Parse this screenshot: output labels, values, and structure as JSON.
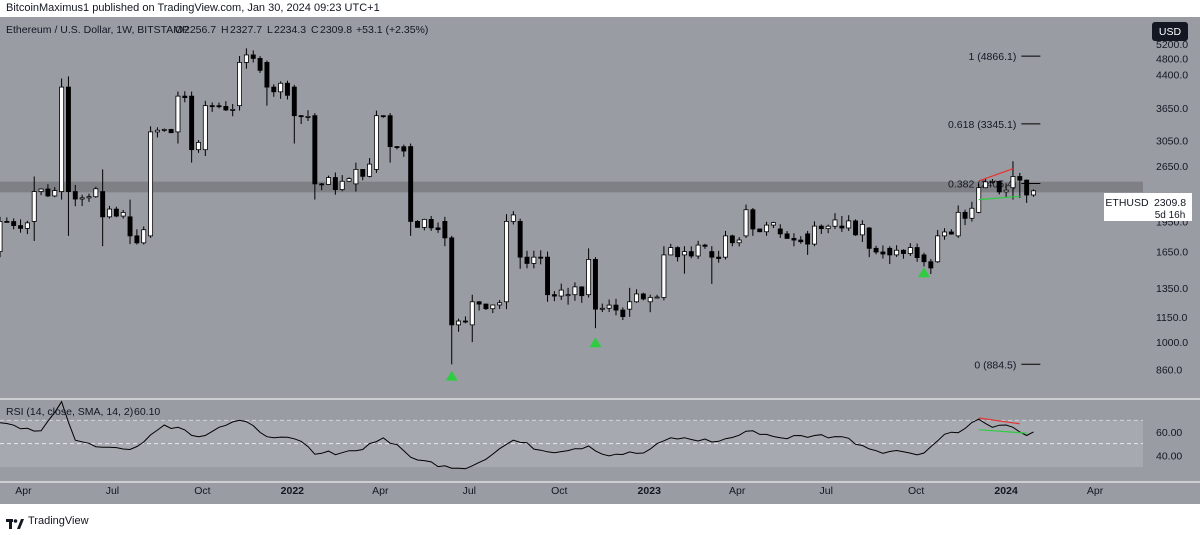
{
  "publisher": "BitcoinMaximus1 published on TradingView.com, Jan 30, 2024 09:23 UTC+1",
  "branding": "TradingView",
  "colors": {
    "background": "#9a9ca4",
    "panel_background": "#ffffff",
    "up_candle": "#ffffff",
    "down_candle": "#000000",
    "resistance_band": "#7e8086",
    "rsi_band": "#a7a9b0",
    "marker": "#2ecc40",
    "divergence_red": "#e5322e",
    "divergence_green": "#2ecc40"
  },
  "chart_data": {
    "type": "candlestick",
    "title": "Ethereum / U.S. Dollar, 1W, BITSTAMP",
    "ohlc_label": {
      "o_label": "O",
      "o": "2256.7",
      "h_label": "H",
      "h": "2327.7",
      "l_label": "L",
      "l": "2234.3",
      "c_label": "C",
      "c": "2309.8",
      "change": "+53.1 (+2.35%)"
    },
    "currency": "USD",
    "scale": "log",
    "ylim": [
      780,
      5500
    ],
    "y_ticks": [
      "5200.0",
      "4800.0",
      "4400.0",
      "3650.0",
      "3050.0",
      "2650.0",
      "1950.0",
      "1650.0",
      "1350.0",
      "1150.0",
      "1000.0",
      "860.0"
    ],
    "x_ticks": [
      "Apr",
      "Jul",
      "Oct",
      "2022",
      "Apr",
      "Jul",
      "Oct",
      "2023",
      "Apr",
      "Jul",
      "Oct",
      "2024",
      "Apr"
    ],
    "x_tick_dates": [
      "2021-04-01",
      "2021-07-01",
      "2021-10-01",
      "2022-01-01",
      "2022-04-01",
      "2022-07-01",
      "2022-10-01",
      "2023-01-01",
      "2023-04-01",
      "2023-07-01",
      "2023-10-01",
      "2024-01-01",
      "2024-04-01"
    ],
    "xlim": [
      "2021-03-08",
      "2024-05-20"
    ],
    "price_label": {
      "symbol": "ETHUSD",
      "price": "2309.8",
      "countdown": "5d 16h"
    },
    "resistance_zone": [
      2290,
      2430
    ],
    "fib_levels": [
      {
        "label": "1 (4866.1)",
        "value": 4866.1
      },
      {
        "label": "0.618 (3345.1)",
        "value": 3345.1
      },
      {
        "label": "0.382 (2405.4)",
        "value": 2405.4
      },
      {
        "label": "0 (884.5)",
        "value": 884.5
      }
    ],
    "fib_x_range": [
      "2023-11-06",
      "2024-02-05"
    ],
    "markers": [
      {
        "date": "2022-06-13",
        "price": 835
      },
      {
        "date": "2022-11-07",
        "price": 1005
      },
      {
        "date": "2023-10-09",
        "price": 1480
      }
    ],
    "price_trendlines": [
      {
        "color": "red",
        "from": [
          "2023-12-04",
          2440
        ],
        "to": [
          "2024-01-08",
          2610
        ]
      },
      {
        "color": "green",
        "from": [
          "2023-12-04",
          2200
        ],
        "to": [
          "2024-01-15",
          2240
        ]
      }
    ],
    "candle_points": [
      {
        "date": "2021-03-08",
        "open": 1650,
        "high": 2000,
        "low": 1600,
        "close": 1950
      },
      {
        "date": "2021-04-12",
        "open": 1950,
        "high": 2500,
        "low": 1750,
        "close": 2300
      },
      {
        "date": "2021-05-10",
        "open": 2300,
        "high": 4300,
        "low": 2200,
        "close": 4100
      },
      {
        "date": "2021-05-17",
        "open": 4100,
        "high": 4350,
        "low": 1800,
        "close": 2300
      },
      {
        "date": "2021-06-21",
        "open": 2300,
        "high": 2600,
        "low": 1700,
        "close": 2000
      },
      {
        "date": "2021-07-19",
        "open": 2000,
        "high": 2200,
        "low": 1720,
        "close": 1800
      },
      {
        "date": "2021-08-09",
        "open": 1800,
        "high": 3300,
        "low": 1780,
        "close": 3200
      },
      {
        "date": "2021-09-06",
        "open": 3200,
        "high": 4000,
        "low": 3000,
        "close": 3900
      },
      {
        "date": "2021-09-20",
        "open": 3900,
        "high": 4000,
        "low": 2700,
        "close": 2900
      },
      {
        "date": "2021-10-04",
        "open": 2900,
        "high": 3800,
        "low": 2800,
        "close": 3700
      },
      {
        "date": "2021-11-08",
        "open": 3700,
        "high": 4870,
        "low": 3600,
        "close": 4700
      },
      {
        "date": "2021-12-06",
        "open": 4700,
        "high": 4750,
        "low": 3700,
        "close": 4100
      },
      {
        "date": "2022-01-03",
        "open": 4100,
        "high": 4150,
        "low": 3000,
        "close": 3500
      },
      {
        "date": "2022-01-24",
        "open": 3500,
        "high": 3550,
        "low": 2200,
        "close": 2400
      },
      {
        "date": "2022-03-07",
        "open": 2400,
        "high": 2700,
        "low": 2300,
        "close": 2600
      },
      {
        "date": "2022-03-28",
        "open": 2600,
        "high": 3600,
        "low": 2550,
        "close": 3500
      },
      {
        "date": "2022-04-11",
        "open": 3500,
        "high": 3550,
        "low": 2700,
        "close": 2950
      },
      {
        "date": "2022-05-02",
        "open": 2950,
        "high": 3000,
        "low": 1800,
        "close": 1950
      },
      {
        "date": "2022-06-06",
        "open": 1950,
        "high": 2000,
        "low": 1700,
        "close": 1780
      },
      {
        "date": "2022-06-13",
        "open": 1780,
        "high": 1800,
        "low": 884,
        "close": 1100
      },
      {
        "date": "2022-07-04",
        "open": 1100,
        "high": 1300,
        "low": 1000,
        "close": 1250
      },
      {
        "date": "2022-08-08",
        "open": 1250,
        "high": 2030,
        "low": 1200,
        "close": 1950
      },
      {
        "date": "2022-08-22",
        "open": 1950,
        "high": 1980,
        "low": 1500,
        "close": 1600
      },
      {
        "date": "2022-09-19",
        "open": 1600,
        "high": 1650,
        "low": 1250,
        "close": 1300
      },
      {
        "date": "2022-10-10",
        "open": 1300,
        "high": 1350,
        "low": 1230,
        "close": 1300
      },
      {
        "date": "2022-10-31",
        "open": 1300,
        "high": 1680,
        "low": 1280,
        "close": 1580
      },
      {
        "date": "2022-11-07",
        "open": 1580,
        "high": 1600,
        "low": 1080,
        "close": 1200
      },
      {
        "date": "2022-12-12",
        "open": 1200,
        "high": 1350,
        "low": 1150,
        "close": 1250
      },
      {
        "date": "2023-01-02",
        "open": 1250,
        "high": 1300,
        "low": 1180,
        "close": 1280
      },
      {
        "date": "2023-01-16",
        "open": 1280,
        "high": 1700,
        "low": 1260,
        "close": 1620
      },
      {
        "date": "2023-02-06",
        "open": 1620,
        "high": 1700,
        "low": 1460,
        "close": 1650
      },
      {
        "date": "2023-03-06",
        "open": 1650,
        "high": 1700,
        "low": 1380,
        "close": 1600
      },
      {
        "date": "2023-03-20",
        "open": 1600,
        "high": 1850,
        "low": 1580,
        "close": 1800
      },
      {
        "date": "2023-04-10",
        "open": 1800,
        "high": 2140,
        "low": 1780,
        "close": 2080
      },
      {
        "date": "2023-04-17",
        "open": 2080,
        "high": 2100,
        "low": 1800,
        "close": 1870
      },
      {
        "date": "2023-05-15",
        "open": 1870,
        "high": 1920,
        "low": 1780,
        "close": 1820
      },
      {
        "date": "2023-06-12",
        "open": 1820,
        "high": 1850,
        "low": 1620,
        "close": 1720
      },
      {
        "date": "2023-06-19",
        "open": 1720,
        "high": 1950,
        "low": 1700,
        "close": 1900
      },
      {
        "date": "2023-07-17",
        "open": 1900,
        "high": 2010,
        "low": 1840,
        "close": 1880
      },
      {
        "date": "2023-08-14",
        "open": 1880,
        "high": 1890,
        "low": 1600,
        "close": 1680
      },
      {
        "date": "2023-09-04",
        "open": 1680,
        "high": 1700,
        "low": 1540,
        "close": 1620
      },
      {
        "date": "2023-10-09",
        "open": 1620,
        "high": 1640,
        "low": 1520,
        "close": 1560
      },
      {
        "date": "2023-10-23",
        "open": 1560,
        "high": 1860,
        "low": 1550,
        "close": 1800
      },
      {
        "date": "2023-11-13",
        "open": 1800,
        "high": 2130,
        "low": 1780,
        "close": 2050
      },
      {
        "date": "2023-12-04",
        "open": 2050,
        "high": 2400,
        "low": 2040,
        "close": 2350
      },
      {
        "date": "2024-01-08",
        "open": 2350,
        "high": 2720,
        "low": 2200,
        "close": 2500
      },
      {
        "date": "2024-01-15",
        "open": 2500,
        "high": 2550,
        "low": 2220,
        "close": 2450
      },
      {
        "date": "2024-01-22",
        "open": 2450,
        "high": 2460,
        "low": 2160,
        "close": 2256.7
      },
      {
        "date": "2024-01-29",
        "open": 2256.7,
        "high": 2327.7,
        "low": 2234.3,
        "close": 2309.8
      }
    ],
    "rsi": {
      "label": "RSI (14, close, SMA, 14, 2)",
      "value": "60.10",
      "y_ticks": [
        "60.00",
        "40.00"
      ],
      "ylim": [
        30,
        84
      ],
      "overbought": 70,
      "middle": 50,
      "oversold": 30,
      "points": [
        {
          "date": "2021-03-08",
          "value": 68
        },
        {
          "date": "2021-04-19",
          "value": 61
        },
        {
          "date": "2021-05-10",
          "value": 86
        },
        {
          "date": "2021-05-24",
          "value": 53
        },
        {
          "date": "2021-06-21",
          "value": 47
        },
        {
          "date": "2021-07-19",
          "value": 45
        },
        {
          "date": "2021-08-23",
          "value": 66
        },
        {
          "date": "2021-09-06",
          "value": 64
        },
        {
          "date": "2021-09-27",
          "value": 56
        },
        {
          "date": "2021-10-18",
          "value": 64
        },
        {
          "date": "2021-11-08",
          "value": 70
        },
        {
          "date": "2021-12-13",
          "value": 55
        },
        {
          "date": "2022-01-10",
          "value": 52
        },
        {
          "date": "2022-01-24",
          "value": 41
        },
        {
          "date": "2022-03-07",
          "value": 44
        },
        {
          "date": "2022-04-04",
          "value": 55
        },
        {
          "date": "2022-05-09",
          "value": 36
        },
        {
          "date": "2022-06-06",
          "value": 31
        },
        {
          "date": "2022-06-20",
          "value": 29
        },
        {
          "date": "2022-07-04",
          "value": 31
        },
        {
          "date": "2022-08-15",
          "value": 53
        },
        {
          "date": "2022-09-19",
          "value": 43
        },
        {
          "date": "2022-10-31",
          "value": 48
        },
        {
          "date": "2022-11-14",
          "value": 41
        },
        {
          "date": "2022-12-26",
          "value": 42
        },
        {
          "date": "2023-01-23",
          "value": 55
        },
        {
          "date": "2023-03-13",
          "value": 52
        },
        {
          "date": "2023-04-17",
          "value": 61
        },
        {
          "date": "2023-05-15",
          "value": 55
        },
        {
          "date": "2023-06-19",
          "value": 57
        },
        {
          "date": "2023-07-17",
          "value": 56
        },
        {
          "date": "2023-08-21",
          "value": 44
        },
        {
          "date": "2023-09-18",
          "value": 43
        },
        {
          "date": "2023-10-09",
          "value": 42
        },
        {
          "date": "2023-10-30",
          "value": 58
        },
        {
          "date": "2023-11-20",
          "value": 63
        },
        {
          "date": "2023-12-04",
          "value": 71
        },
        {
          "date": "2023-12-18",
          "value": 64
        },
        {
          "date": "2024-01-01",
          "value": 66
        },
        {
          "date": "2024-01-15",
          "value": 60
        },
        {
          "date": "2024-01-22",
          "value": 57
        },
        {
          "date": "2024-01-29",
          "value": 60.1
        }
      ],
      "divergence_lines": [
        {
          "color": "red",
          "from": [
            "2023-12-04",
            72
          ],
          "to": [
            "2024-01-15",
            67
          ]
        },
        {
          "color": "green",
          "from": [
            "2023-12-04",
            62
          ],
          "to": [
            "2024-01-22",
            59
          ]
        }
      ]
    }
  }
}
